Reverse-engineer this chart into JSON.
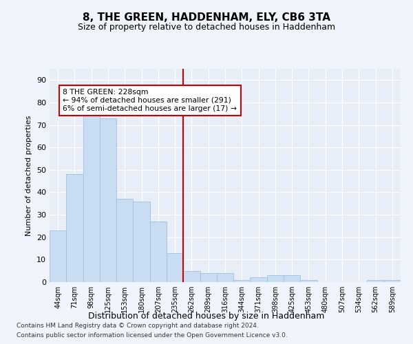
{
  "title": "8, THE GREEN, HADDENHAM, ELY, CB6 3TA",
  "subtitle": "Size of property relative to detached houses in Haddenham",
  "xlabel": "Distribution of detached houses by size in Haddenham",
  "ylabel": "Number of detached properties",
  "bar_color": "#c9ddf2",
  "bar_edge_color": "#a0bfe0",
  "background_color": "#e8eef8",
  "grid_color": "#ffffff",
  "categories": [
    "44sqm",
    "71sqm",
    "98sqm",
    "125sqm",
    "153sqm",
    "180sqm",
    "207sqm",
    "235sqm",
    "262sqm",
    "289sqm",
    "316sqm",
    "344sqm",
    "371sqm",
    "398sqm",
    "425sqm",
    "453sqm",
    "480sqm",
    "507sqm",
    "534sqm",
    "562sqm",
    "589sqm"
  ],
  "values": [
    23,
    48,
    75,
    73,
    37,
    36,
    27,
    13,
    5,
    4,
    4,
    1,
    2,
    3,
    3,
    1,
    0,
    0,
    0,
    1,
    1
  ],
  "vline_x": 7.5,
  "vline_color": "#cc0000",
  "annotation_text": "8 THE GREEN: 228sqm\n← 94% of detached houses are smaller (291)\n6% of semi-detached houses are larger (17) →",
  "annotation_box_color": "#ffffff",
  "annotation_box_edge": "#cc0000",
  "ylim": [
    0,
    95
  ],
  "yticks": [
    0,
    10,
    20,
    30,
    40,
    50,
    60,
    70,
    80,
    90
  ],
  "footer_line1": "Contains HM Land Registry data © Crown copyright and database right 2024.",
  "footer_line2": "Contains public sector information licensed under the Open Government Licence v3.0.",
  "fig_width": 6.0,
  "fig_height": 5.0
}
